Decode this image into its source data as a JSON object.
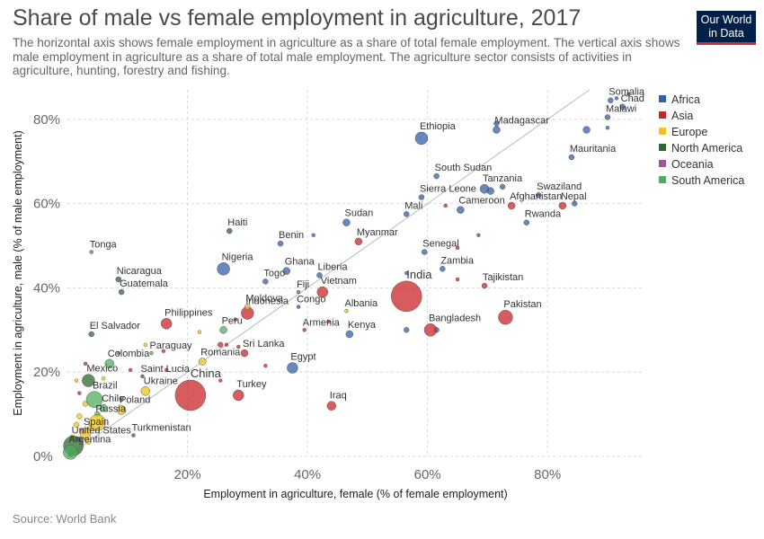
{
  "header": {
    "title": "Share of male vs female employment in agriculture, 2017",
    "subtitle": "The horizontal axis shows female employment in agriculture as a share of total female employment. The vertical axis shows male employment in agriculture as a share of total male employment. The agriculture sector consists of activities in agriculture, hunting, forestry and fishing.",
    "logo_line1": "Our World",
    "logo_line2": "in Data",
    "logo_color": "#002147",
    "logo_accent": "#d42b36"
  },
  "footer": {
    "source": "Source: World Bank"
  },
  "chart_data": {
    "type": "scatter",
    "xlabel": "Employment in agriculture, female (% of female employment)",
    "ylabel": "Employment in agriculture, male (% of male employment)",
    "xlim": [
      0,
      96
    ],
    "ylim": [
      0,
      87
    ],
    "xticks": [
      {
        "v": 20,
        "label": "20%"
      },
      {
        "v": 40,
        "label": "40%"
      },
      {
        "v": 60,
        "label": "60%"
      },
      {
        "v": 80,
        "label": "80%"
      }
    ],
    "yticks": [
      {
        "v": 0,
        "label": "0%"
      },
      {
        "v": 20,
        "label": "20%"
      },
      {
        "v": 40,
        "label": "40%"
      },
      {
        "v": 60,
        "label": "60%"
      },
      {
        "v": 80,
        "label": "80%"
      }
    ],
    "grid": true,
    "legend_position": "right",
    "legend": [
      {
        "name": "Africa",
        "color": "#3360a9"
      },
      {
        "name": "Asia",
        "color": "#ca2628"
      },
      {
        "name": "Europe",
        "color": "#f0c419"
      },
      {
        "name": "North America",
        "color": "#2d6a2e"
      },
      {
        "name": "Oceania",
        "color": "#a2559c"
      },
      {
        "name": "South America",
        "color": "#4fae5f"
      }
    ],
    "labeled_points": [
      {
        "label": "Somalia",
        "x": 90.5,
        "y": 84.5,
        "region": "Africa",
        "size": 3
      },
      {
        "label": "Chad",
        "x": 92.5,
        "y": 83.0,
        "region": "Africa",
        "size": 3
      },
      {
        "label": "Malawi",
        "x": 90.0,
        "y": 80.5,
        "region": "Africa",
        "size": 3
      },
      {
        "label": "Madagascar",
        "x": 71.5,
        "y": 77.5,
        "region": "Africa",
        "size": 4
      },
      {
        "label": "Ethiopia",
        "x": 59.0,
        "y": 75.5,
        "region": "Africa",
        "size": 7
      },
      {
        "label": "Mauritania",
        "x": 84.0,
        "y": 71.0,
        "region": "Africa",
        "size": 3
      },
      {
        "label": "South Sudan",
        "x": 61.5,
        "y": 66.5,
        "region": "Africa",
        "size": 3
      },
      {
        "label": "Tanzania",
        "x": 69.5,
        "y": 63.5,
        "region": "Africa",
        "size": 5
      },
      {
        "label": "Swaziland",
        "x": 78.5,
        "y": 62.0,
        "region": "Africa",
        "size": 3
      },
      {
        "label": "Sierra Leone",
        "x": 59.0,
        "y": 61.5,
        "region": "Africa",
        "size": 3
      },
      {
        "label": "Cameroon",
        "x": 65.5,
        "y": 58.5,
        "region": "Africa",
        "size": 4
      },
      {
        "label": "Afghanistan",
        "x": 74.0,
        "y": 59.5,
        "region": "Asia",
        "size": 4
      },
      {
        "label": "Nepal",
        "x": 82.5,
        "y": 59.5,
        "region": "Asia",
        "size": 4
      },
      {
        "label": "Mali",
        "x": 56.5,
        "y": 57.5,
        "region": "Africa",
        "size": 3
      },
      {
        "label": "Rwanda",
        "x": 76.5,
        "y": 55.5,
        "region": "Africa",
        "size": 3
      },
      {
        "label": "Sudan",
        "x": 46.5,
        "y": 55.5,
        "region": "Africa",
        "size": 4
      },
      {
        "label": "Haiti",
        "x": 27.0,
        "y": 53.5,
        "region": "North America",
        "size": 3
      },
      {
        "label": "Benin",
        "x": 35.5,
        "y": 50.5,
        "region": "Africa",
        "size": 3
      },
      {
        "label": "Myanmar",
        "x": 48.5,
        "y": 51.0,
        "region": "Asia",
        "size": 4
      },
      {
        "label": "Senegal",
        "x": 59.5,
        "y": 48.5,
        "region": "Africa",
        "size": 3
      },
      {
        "label": "Tonga",
        "x": 4.0,
        "y": 48.5,
        "region": "Oceania",
        "size": 2
      },
      {
        "label": "Nigeria",
        "x": 26.0,
        "y": 44.5,
        "region": "Africa",
        "size": 7
      },
      {
        "label": "Ghana",
        "x": 36.5,
        "y": 44.0,
        "region": "Africa",
        "size": 4
      },
      {
        "label": "Liberia",
        "x": 42.0,
        "y": 43.0,
        "region": "Africa",
        "size": 3
      },
      {
        "label": "Zambia",
        "x": 62.5,
        "y": 44.5,
        "region": "Africa",
        "size": 3
      },
      {
        "label": "Togo",
        "x": 33.0,
        "y": 41.5,
        "region": "Africa",
        "size": 3
      },
      {
        "label": "India",
        "x": 56.5,
        "y": 38.0,
        "region": "Asia",
        "size": 17
      },
      {
        "label": "Tajikistan",
        "x": 69.5,
        "y": 40.5,
        "region": "Asia",
        "size": 3
      },
      {
        "label": "Nicaragua",
        "x": 8.5,
        "y": 42.0,
        "region": "North America",
        "size": 3
      },
      {
        "label": "Guatemala",
        "x": 9.0,
        "y": 39.0,
        "region": "North America",
        "size": 3
      },
      {
        "label": "Fiji",
        "x": 38.5,
        "y": 39.0,
        "region": "Oceania",
        "size": 2
      },
      {
        "label": "Vietnam",
        "x": 42.5,
        "y": 39.0,
        "region": "Asia",
        "size": 6
      },
      {
        "label": "Moldova",
        "x": 30.0,
        "y": 35.5,
        "region": "Europe",
        "size": 3
      },
      {
        "label": "Congo",
        "x": 38.5,
        "y": 35.5,
        "region": "Africa",
        "size": 2
      },
      {
        "label": "Albania",
        "x": 46.5,
        "y": 34.5,
        "region": "Europe",
        "size": 2
      },
      {
        "label": "Indonesia",
        "x": 30.0,
        "y": 34.0,
        "region": "Asia",
        "size": 7
      },
      {
        "label": "Philippines",
        "x": 16.5,
        "y": 31.5,
        "region": "Asia",
        "size": 6
      },
      {
        "label": "Pakistan",
        "x": 73.0,
        "y": 33.0,
        "region": "Asia",
        "size": 8
      },
      {
        "label": "Bangladesh",
        "x": 60.5,
        "y": 30.0,
        "region": "Asia",
        "size": 7
      },
      {
        "label": "Peru",
        "x": 26.0,
        "y": 30.0,
        "region": "South America",
        "size": 4
      },
      {
        "label": "Armenia",
        "x": 39.5,
        "y": 30.0,
        "region": "Asia",
        "size": 2
      },
      {
        "label": "Kenya",
        "x": 47.0,
        "y": 29.0,
        "region": "Africa",
        "size": 4
      },
      {
        "label": "El Salvador",
        "x": 4.0,
        "y": 29.0,
        "region": "North America",
        "size": 3
      },
      {
        "label": "Paraguay",
        "x": 14.0,
        "y": 24.5,
        "region": "South America",
        "size": 2
      },
      {
        "label": "Sri Lanka",
        "x": 29.5,
        "y": 24.5,
        "region": "Asia",
        "size": 4
      },
      {
        "label": "Romania",
        "x": 22.5,
        "y": 22.5,
        "region": "Europe",
        "size": 4
      },
      {
        "label": "Colombia",
        "x": 7.0,
        "y": 22.0,
        "region": "South America",
        "size": 5
      },
      {
        "label": "Egypt",
        "x": 37.5,
        "y": 21.0,
        "region": "Africa",
        "size": 6
      },
      {
        "label": "Mexico",
        "x": 3.5,
        "y": 18.0,
        "region": "North America",
        "size": 7
      },
      {
        "label": "Saint Lucia",
        "x": 12.5,
        "y": 19.0,
        "region": "North America",
        "size": 2
      },
      {
        "label": "Ukraine",
        "x": 13.0,
        "y": 15.5,
        "region": "Europe",
        "size": 5
      },
      {
        "label": "China",
        "x": 20.5,
        "y": 14.5,
        "region": "Asia",
        "size": 17
      },
      {
        "label": "Turkey",
        "x": 28.5,
        "y": 14.5,
        "region": "Asia",
        "size": 6
      },
      {
        "label": "Brazil",
        "x": 4.5,
        "y": 13.5,
        "region": "South America",
        "size": 9
      },
      {
        "label": "Chile",
        "x": 6.0,
        "y": 11.5,
        "region": "South America",
        "size": 4
      },
      {
        "label": "Poland",
        "x": 9.0,
        "y": 11.0,
        "region": "Europe",
        "size": 5
      },
      {
        "label": "Iraq",
        "x": 44.0,
        "y": 12.0,
        "region": "Asia",
        "size": 5
      },
      {
        "label": "Russia",
        "x": 5.0,
        "y": 8.0,
        "region": "Europe",
        "size": 9
      },
      {
        "label": "Turkmenistan",
        "x": 11.0,
        "y": 5.0,
        "region": "Asia",
        "size": 2
      },
      {
        "label": "Spain",
        "x": 3.0,
        "y": 5.5,
        "region": "Europe",
        "size": 6
      },
      {
        "label": "United States",
        "x": 1.0,
        "y": 2.5,
        "region": "North America",
        "size": 11
      },
      {
        "label": "Argentina",
        "x": 0.5,
        "y": 1.0,
        "region": "South America",
        "size": 8
      }
    ],
    "unlabeled_points": [
      {
        "x": 93.5,
        "y": 86.0,
        "region": "Africa",
        "size": 2
      },
      {
        "x": 91.5,
        "y": 85.0,
        "region": "Africa",
        "size": 2
      },
      {
        "x": 86.5,
        "y": 77.5,
        "region": "Africa",
        "size": 4
      },
      {
        "x": 71.5,
        "y": 79.0,
        "region": "Africa",
        "size": 3
      },
      {
        "x": 90.0,
        "y": 78.0,
        "region": "Africa",
        "size": 2
      },
      {
        "x": 72.5,
        "y": 64.0,
        "region": "Africa",
        "size": 3
      },
      {
        "x": 70.5,
        "y": 63.0,
        "region": "Africa",
        "size": 4
      },
      {
        "x": 84.5,
        "y": 60.0,
        "region": "Africa",
        "size": 3
      },
      {
        "x": 63.0,
        "y": 59.5,
        "region": "Asia",
        "size": 2
      },
      {
        "x": 41.0,
        "y": 52.5,
        "region": "Africa",
        "size": 2
      },
      {
        "x": 68.5,
        "y": 52.5,
        "region": "Africa",
        "size": 2
      },
      {
        "x": 65.0,
        "y": 49.5,
        "region": "Asia",
        "size": 2
      },
      {
        "x": 56.5,
        "y": 43.5,
        "region": "Africa",
        "size": 2
      },
      {
        "x": 65.0,
        "y": 42.0,
        "region": "Asia",
        "size": 2
      },
      {
        "x": 28.0,
        "y": 32.5,
        "region": "Asia",
        "size": 2
      },
      {
        "x": 22.0,
        "y": 29.5,
        "region": "Europe",
        "size": 2
      },
      {
        "x": 43.5,
        "y": 32.0,
        "region": "Asia",
        "size": 2
      },
      {
        "x": 56.5,
        "y": 30.0,
        "region": "Africa",
        "size": 3
      },
      {
        "x": 61.5,
        "y": 30.0,
        "region": "Africa",
        "size": 3
      },
      {
        "x": 25.5,
        "y": 26.5,
        "region": "Asia",
        "size": 3
      },
      {
        "x": 26.5,
        "y": 26.5,
        "region": "Asia",
        "size": 2
      },
      {
        "x": 28.5,
        "y": 26.0,
        "region": "Asia",
        "size": 2
      },
      {
        "x": 16.0,
        "y": 25.0,
        "region": "Asia",
        "size": 2
      },
      {
        "x": 33.0,
        "y": 21.5,
        "region": "Asia",
        "size": 2
      },
      {
        "x": 8.5,
        "y": 24.5,
        "region": "South America",
        "size": 2
      },
      {
        "x": 13.0,
        "y": 26.5,
        "region": "Europe",
        "size": 2
      },
      {
        "x": 3.0,
        "y": 22.0,
        "region": "Asia",
        "size": 2
      },
      {
        "x": 6.0,
        "y": 18.5,
        "region": "Europe",
        "size": 2
      },
      {
        "x": 10.5,
        "y": 20.5,
        "region": "Asia",
        "size": 2
      },
      {
        "x": 16.5,
        "y": 20.5,
        "region": "Asia",
        "size": 2
      },
      {
        "x": 25.5,
        "y": 18.0,
        "region": "Asia",
        "size": 2
      },
      {
        "x": 1.5,
        "y": 18.0,
        "region": "Europe",
        "size": 2
      },
      {
        "x": 2.0,
        "y": 15.0,
        "region": "Asia",
        "size": 2
      },
      {
        "x": 3.0,
        "y": 12.5,
        "region": "Europe",
        "size": 3
      },
      {
        "x": 5.0,
        "y": 10.0,
        "region": "South America",
        "size": 3
      },
      {
        "x": 2.0,
        "y": 9.5,
        "region": "Europe",
        "size": 3
      },
      {
        "x": 1.5,
        "y": 7.5,
        "region": "Europe",
        "size": 3
      },
      {
        "x": 4.0,
        "y": 7.0,
        "region": "Europe",
        "size": 3
      },
      {
        "x": 2.5,
        "y": 6.0,
        "region": "Asia",
        "size": 3
      },
      {
        "x": 0.8,
        "y": 4.5,
        "region": "Europe",
        "size": 3
      },
      {
        "x": 2.0,
        "y": 4.0,
        "region": "North America",
        "size": 3
      },
      {
        "x": 3.5,
        "y": 3.5,
        "region": "Europe",
        "size": 3
      },
      {
        "x": 1.0,
        "y": 1.5,
        "region": "Europe",
        "size": 3
      },
      {
        "x": 0.5,
        "y": 0.5,
        "region": "Oceania",
        "size": 3
      }
    ]
  }
}
